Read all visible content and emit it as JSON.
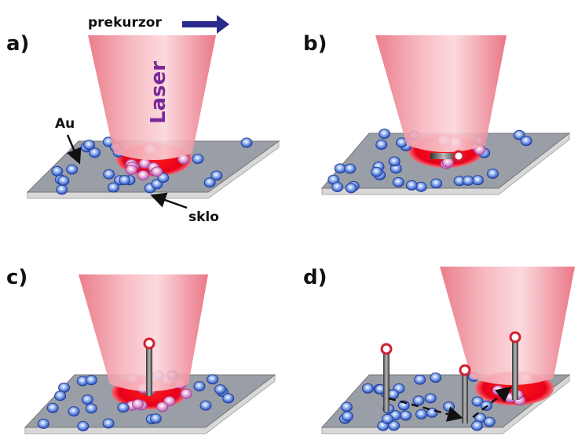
{
  "header": {
    "precursor": "prekurzor"
  },
  "panels": [
    {
      "label": "a)",
      "laser": "Laser",
      "gold": "Au",
      "glass": "sklo"
    },
    {
      "label": "b)"
    },
    {
      "label": "c)"
    },
    {
      "label": "d)"
    }
  ]
}
